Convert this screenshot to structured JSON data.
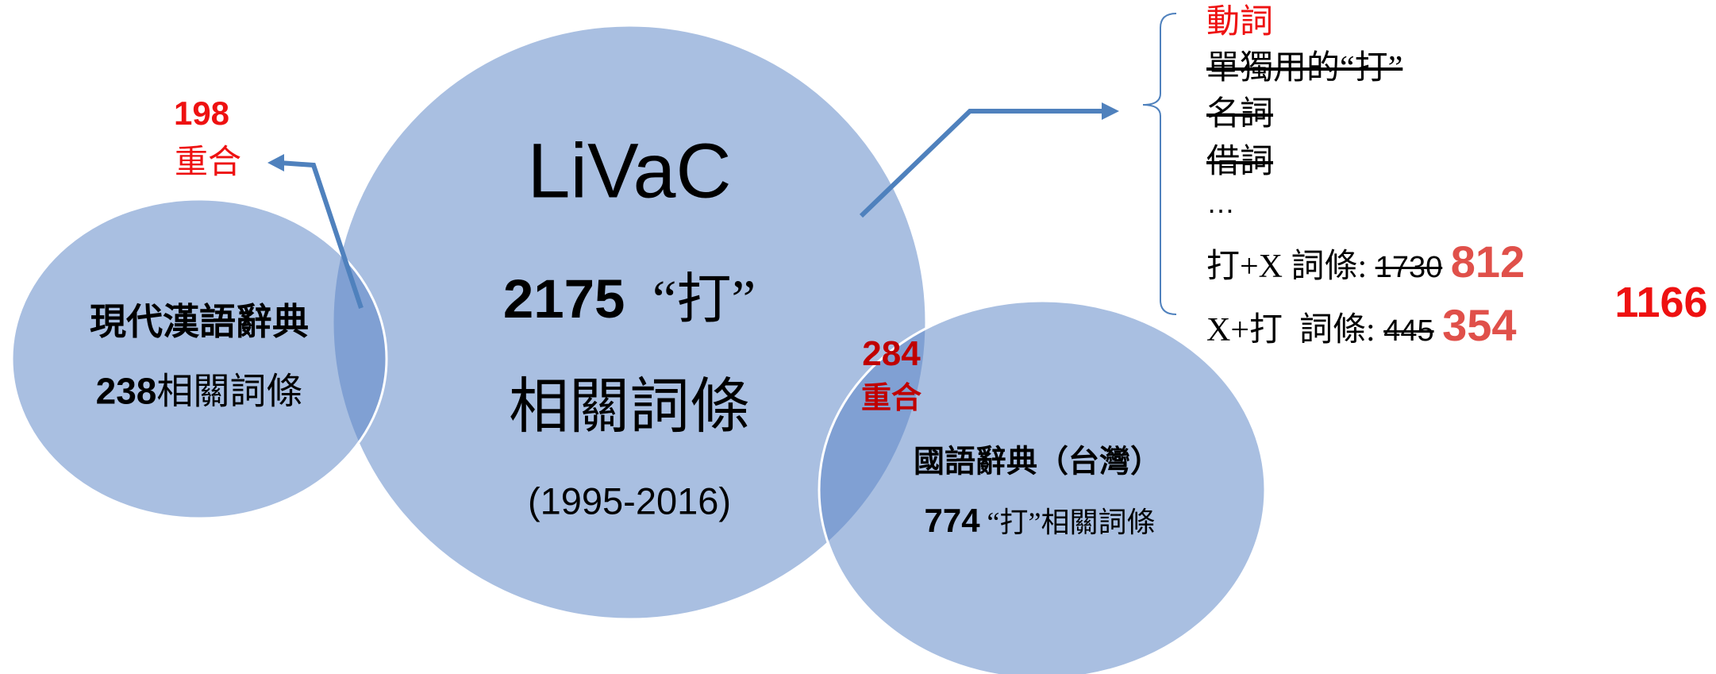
{
  "livac": {
    "title": "LiVaC",
    "count": 2175,
    "target": "“打”",
    "label": "相關詞條",
    "years": "(1995-2016)"
  },
  "modern_chinese_dictionary": {
    "name": "現代漢語辭典",
    "count": 238,
    "label": "相關詞條"
  },
  "overlap_left": {
    "count": 198,
    "label": "重合"
  },
  "taiwan_dictionary": {
    "name": "國語辭典（台灣）",
    "count": 774,
    "label": "“打”相關詞條"
  },
  "overlap_right": {
    "count": 284,
    "label": "重合"
  },
  "breakdown": {
    "items": [
      "動詞",
      "單獨用的“打”",
      "名詞",
      "借詞",
      "…"
    ],
    "rows": [
      {
        "label": "打+X 詞條:",
        "old": 1730,
        "new": 812
      },
      {
        "label": "X+打  詞條:",
        "old": 445,
        "new": 354
      }
    ],
    "total": 1166
  }
}
